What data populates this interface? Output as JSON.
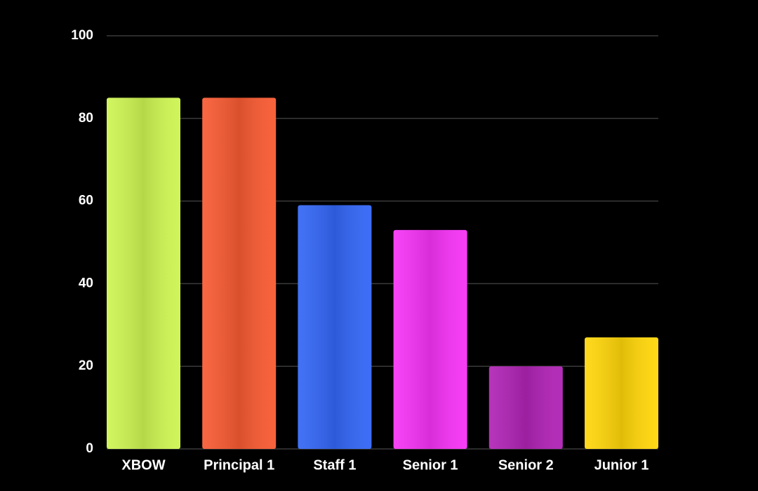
{
  "chart_data": {
    "type": "bar",
    "categories": [
      "XBOW",
      "Principal 1",
      "Staff 1",
      "Senior 1",
      "Senior 2",
      "Junior 1"
    ],
    "values": [
      85,
      85,
      59,
      53,
      20,
      27
    ],
    "colors": [
      "#cdf552",
      "#f75a32",
      "#3366f5",
      "#f533f5",
      "#b023b5",
      "#ffd60a"
    ],
    "ylim": [
      0,
      100
    ],
    "yticks": [
      0,
      20,
      40,
      60,
      80,
      100
    ],
    "grid": true
  }
}
